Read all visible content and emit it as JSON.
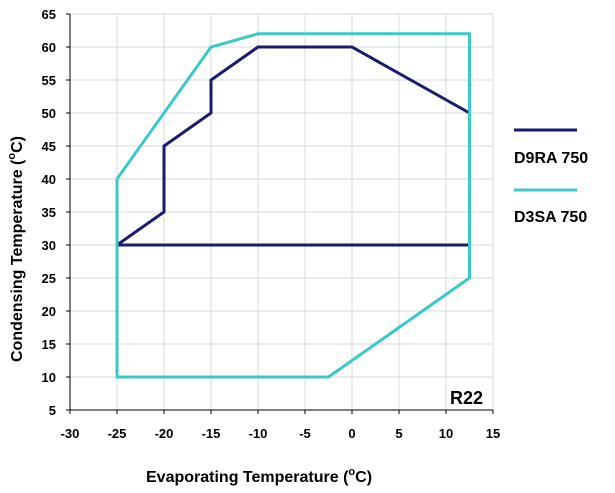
{
  "chart_data": {
    "type": "line",
    "xlabel": "Evaporating Temperature (",
    "xlabel_unit": "C)",
    "ylabel": "Condensing Temperature (",
    "ylabel_unit": "C)",
    "degree_symbol": "o",
    "xlim": [
      -30,
      15
    ],
    "ylim": [
      5,
      65
    ],
    "x_ticks": [
      -30,
      -25,
      -20,
      -15,
      -10,
      -5,
      0,
      5,
      10,
      15
    ],
    "y_ticks": [
      5,
      10,
      15,
      20,
      25,
      30,
      35,
      40,
      45,
      50,
      55,
      60,
      65
    ],
    "grid": true,
    "legend_position": "right",
    "annotation": "R22",
    "series": [
      {
        "name": "D9RA 750",
        "color": "#1a1a6e",
        "points": [
          [
            -25,
            30
          ],
          [
            -20,
            35
          ],
          [
            -20,
            45
          ],
          [
            -15,
            50
          ],
          [
            -15,
            55
          ],
          [
            -10,
            60
          ],
          [
            0,
            60
          ],
          [
            12.5,
            50
          ],
          [
            12.5,
            30
          ],
          [
            -25,
            30
          ]
        ]
      },
      {
        "name": "D3SA 750",
        "color": "#3cc8c8",
        "points": [
          [
            -25,
            30
          ],
          [
            -25,
            40
          ],
          [
            -15,
            60
          ],
          [
            -10,
            62
          ],
          [
            12.5,
            62
          ],
          [
            12.5,
            25
          ],
          [
            -2.5,
            10
          ],
          [
            -25,
            10
          ],
          [
            -25,
            30
          ]
        ]
      }
    ]
  }
}
